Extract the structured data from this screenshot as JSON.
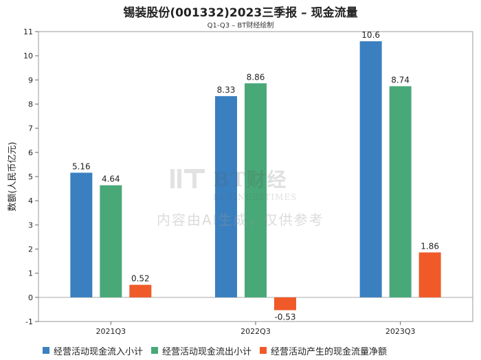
{
  "chart_data": {
    "type": "bar",
    "title": "锡装股份(001332)2023三季报 – 现金流量",
    "subtitle": "Q1-Q3 – BT财经绘制",
    "ylabel": "数额(人民币亿元)",
    "xlabel": "",
    "categories": [
      "2021Q3",
      "2022Q3",
      "2023Q3"
    ],
    "ylim": [
      -1,
      11
    ],
    "yticks": [
      -1,
      0,
      1,
      2,
      3,
      4,
      5,
      6,
      7,
      8,
      9,
      10,
      11
    ],
    "series": [
      {
        "name": "经营活动现金流入小计",
        "color": "#3a80c0",
        "values": [
          5.16,
          8.33,
          10.6
        ]
      },
      {
        "name": "经营活动现金流出小计",
        "color": "#48a878",
        "values": [
          4.64,
          8.86,
          8.74
        ]
      },
      {
        "name": "经营活动产生的现金流量净额",
        "color": "#f05a28",
        "values": [
          0.52,
          -0.53,
          1.86
        ]
      }
    ],
    "grid": false,
    "legend_position": "bottom"
  },
  "watermark": {
    "brand": "BT财经",
    "brand_en": "BUSINESSTIMES",
    "notice": "内容由AI生成，仅供参考"
  }
}
